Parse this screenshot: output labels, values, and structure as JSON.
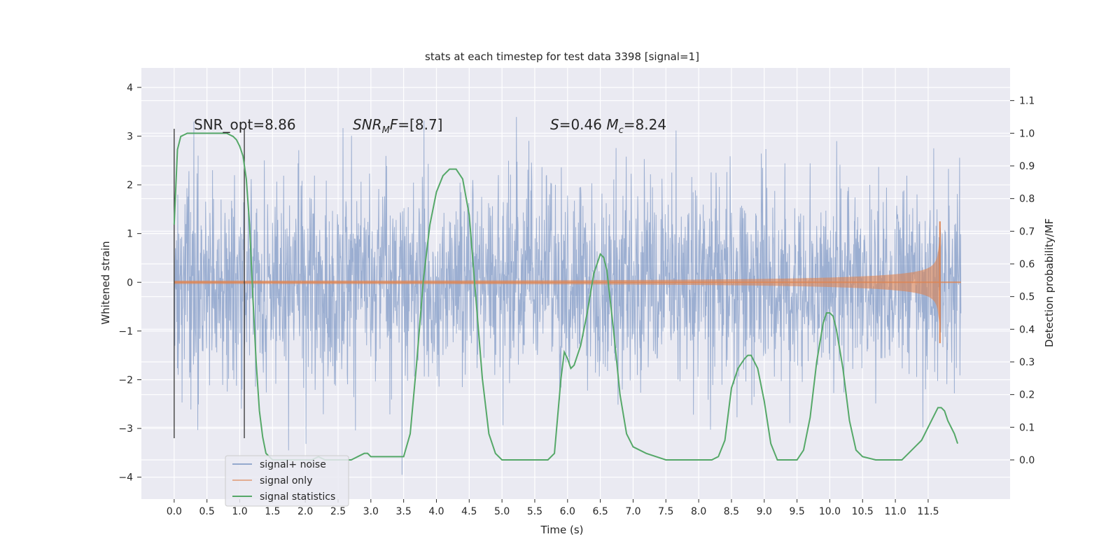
{
  "chart_data": {
    "type": "line",
    "title": "stats at each timestep for test data 3398 [signal=1]",
    "xlabel": "Time (s)",
    "ylabel": "Whitened strain",
    "y2label": "Detection probability/MF",
    "xlim": [
      -0.5,
      12.75
    ],
    "ylim": [
      -4.45,
      4.4
    ],
    "y2lim": [
      -0.12,
      1.2
    ],
    "x_ticks": [
      0.0,
      0.5,
      1.0,
      1.5,
      2.0,
      2.5,
      3.0,
      3.5,
      4.0,
      4.5,
      5.0,
      5.5,
      6.0,
      6.5,
      7.0,
      7.5,
      8.0,
      8.5,
      9.0,
      9.5,
      10.0,
      10.5,
      11.0,
      11.5
    ],
    "x_tick_labels": [
      "0.0",
      "0.5",
      "1.0",
      "1.5",
      "2.0",
      "2.5",
      "3.0",
      "3.5",
      "4.0",
      "4.5",
      "5.0",
      "5.5",
      "6.0",
      "6.5",
      "7.0",
      "7.5",
      "8.0",
      "8.5",
      "9.0",
      "9.5",
      "10.0",
      "10.5",
      "11.0",
      "11.5"
    ],
    "y_ticks": [
      -4,
      -3,
      -2,
      -1,
      0,
      1,
      2,
      3,
      4
    ],
    "y_tick_labels": [
      "−4",
      "−3",
      "−2",
      "−1",
      "0",
      "1",
      "2",
      "3",
      "4"
    ],
    "y2_ticks": [
      0.0,
      0.1,
      0.2,
      0.3,
      0.4,
      0.5,
      0.6,
      0.7,
      0.8,
      0.9,
      1.0,
      1.1
    ],
    "y2_tick_labels": [
      "0.0",
      "0.1",
      "0.2",
      "0.3",
      "0.4",
      "0.5",
      "0.6",
      "0.7",
      "0.8",
      "0.9",
      "1.0",
      "1.1"
    ],
    "grid": true,
    "legend_location": "lower-left",
    "annotations": [
      {
        "text": "SNR_opt=8.86",
        "x": 0.2,
        "y": 3.1
      },
      {
        "text": "SNR_MF=[8.7]",
        "x": 2.6,
        "y": 3.1
      },
      {
        "text": "S=0.46   M_c=8.24",
        "x": 5.6,
        "y": 3.1
      }
    ],
    "vertical_markers": [
      {
        "x": 0.0,
        "y_range": [
          -3.2,
          3.15
        ]
      },
      {
        "x": 1.07,
        "y_range": [
          -3.2,
          3.15
        ]
      }
    ],
    "series": [
      {
        "name": "signal+ noise",
        "color": "#4c72b0",
        "kind": "noise",
        "x_range": [
          0.0,
          12.0
        ],
        "std": 1.0
      },
      {
        "name": "signal only",
        "color": "#dd8452",
        "kind": "chirp",
        "x_range": [
          0.0,
          11.68
        ],
        "peak_amplitude": 1.2
      },
      {
        "name": "signal statistics",
        "color": "#55a868",
        "axis": "right",
        "x": [
          0.0,
          0.05,
          0.1,
          0.2,
          0.3,
          0.4,
          0.5,
          0.6,
          0.7,
          0.8,
          0.9,
          0.95,
          1.0,
          1.05,
          1.1,
          1.15,
          1.2,
          1.25,
          1.3,
          1.35,
          1.4,
          1.5,
          1.6,
          1.7,
          1.8,
          2.0,
          2.1,
          2.2,
          2.3,
          2.4,
          2.5,
          2.6,
          2.7,
          2.8,
          2.9,
          2.95,
          3.0,
          3.1,
          3.2,
          3.3,
          3.4,
          3.5,
          3.6,
          3.7,
          3.8,
          3.9,
          4.0,
          4.1,
          4.2,
          4.3,
          4.4,
          4.5,
          4.6,
          4.7,
          4.8,
          4.9,
          5.0,
          5.2,
          5.5,
          5.7,
          5.8,
          5.9,
          5.95,
          6.0,
          6.05,
          6.1,
          6.2,
          6.3,
          6.4,
          6.5,
          6.55,
          6.6,
          6.7,
          6.8,
          6.9,
          7.0,
          7.2,
          7.5,
          8.0,
          8.2,
          8.3,
          8.4,
          8.5,
          8.6,
          8.7,
          8.75,
          8.8,
          8.9,
          9.0,
          9.1,
          9.2,
          9.4,
          9.5,
          9.6,
          9.7,
          9.8,
          9.9,
          9.95,
          10.0,
          10.05,
          10.1,
          10.2,
          10.3,
          10.4,
          10.5,
          10.7,
          11.0,
          11.1,
          11.2,
          11.3,
          11.4,
          11.5,
          11.6,
          11.65,
          11.7,
          11.75,
          11.8,
          11.9,
          11.95
        ],
        "y": [
          0.72,
          0.95,
          0.99,
          1.0,
          1.0,
          1.0,
          1.0,
          1.0,
          1.0,
          1.0,
          0.99,
          0.98,
          0.96,
          0.93,
          0.86,
          0.72,
          0.5,
          0.3,
          0.15,
          0.07,
          0.02,
          0.0,
          0.0,
          0.0,
          0.0,
          0.0,
          0.0,
          0.01,
          0.0,
          0.0,
          0.0,
          0.0,
          0.0,
          0.01,
          0.02,
          0.02,
          0.01,
          0.01,
          0.01,
          0.01,
          0.01,
          0.01,
          0.08,
          0.3,
          0.55,
          0.72,
          0.82,
          0.87,
          0.89,
          0.89,
          0.86,
          0.75,
          0.5,
          0.25,
          0.08,
          0.02,
          0.0,
          0.0,
          0.0,
          0.0,
          0.02,
          0.25,
          0.33,
          0.31,
          0.28,
          0.29,
          0.35,
          0.45,
          0.57,
          0.63,
          0.62,
          0.58,
          0.4,
          0.2,
          0.08,
          0.04,
          0.02,
          0.0,
          0.0,
          0.0,
          0.01,
          0.06,
          0.22,
          0.28,
          0.31,
          0.32,
          0.32,
          0.28,
          0.18,
          0.05,
          0.0,
          0.0,
          0.0,
          0.03,
          0.13,
          0.3,
          0.42,
          0.45,
          0.45,
          0.44,
          0.4,
          0.28,
          0.12,
          0.03,
          0.01,
          0.0,
          0.0,
          0.0,
          0.02,
          0.04,
          0.06,
          0.1,
          0.14,
          0.16,
          0.16,
          0.15,
          0.12,
          0.08,
          0.05
        ]
      }
    ]
  }
}
